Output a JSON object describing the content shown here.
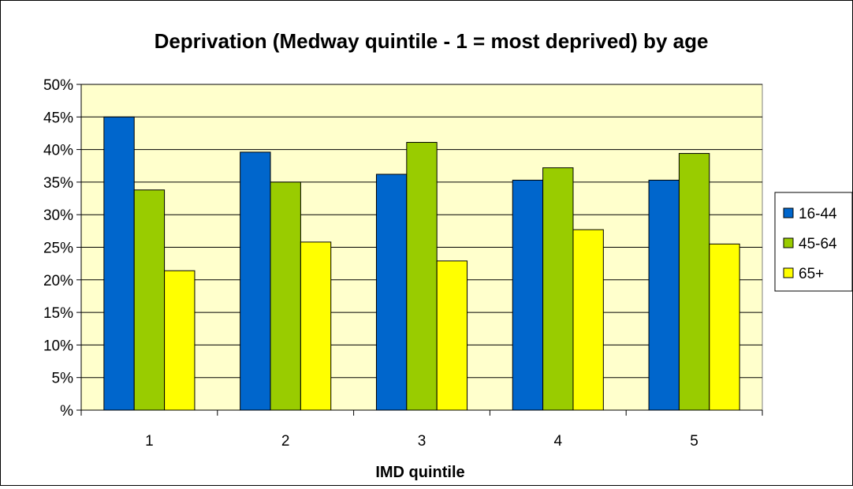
{
  "chart_data": {
    "type": "bar",
    "title": "Deprivation (Medway quintile - 1 = most deprived) by age",
    "xlabel": "IMD quintile",
    "ylabel": "",
    "categories": [
      "1",
      "2",
      "3",
      "4",
      "5"
    ],
    "series": [
      {
        "name": "16-44",
        "color": "#0066CC",
        "values": [
          45.0,
          39.6,
          36.2,
          35.3,
          35.3
        ]
      },
      {
        "name": "45-64",
        "color": "#99CC00",
        "values": [
          33.8,
          35.0,
          41.1,
          37.2,
          39.4
        ]
      },
      {
        "name": "65+",
        "color": "#FFFF00",
        "values": [
          21.4,
          25.8,
          22.9,
          27.7,
          25.5
        ]
      }
    ],
    "ylim": [
      0,
      50
    ],
    "y_ticks": [
      "%",
      "5%",
      "10%",
      "15%",
      "20%",
      "25%",
      "30%",
      "35%",
      "40%",
      "45%",
      "50%"
    ],
    "grid": true,
    "legend_position": "right",
    "plot_background": "#FFFFCC"
  }
}
